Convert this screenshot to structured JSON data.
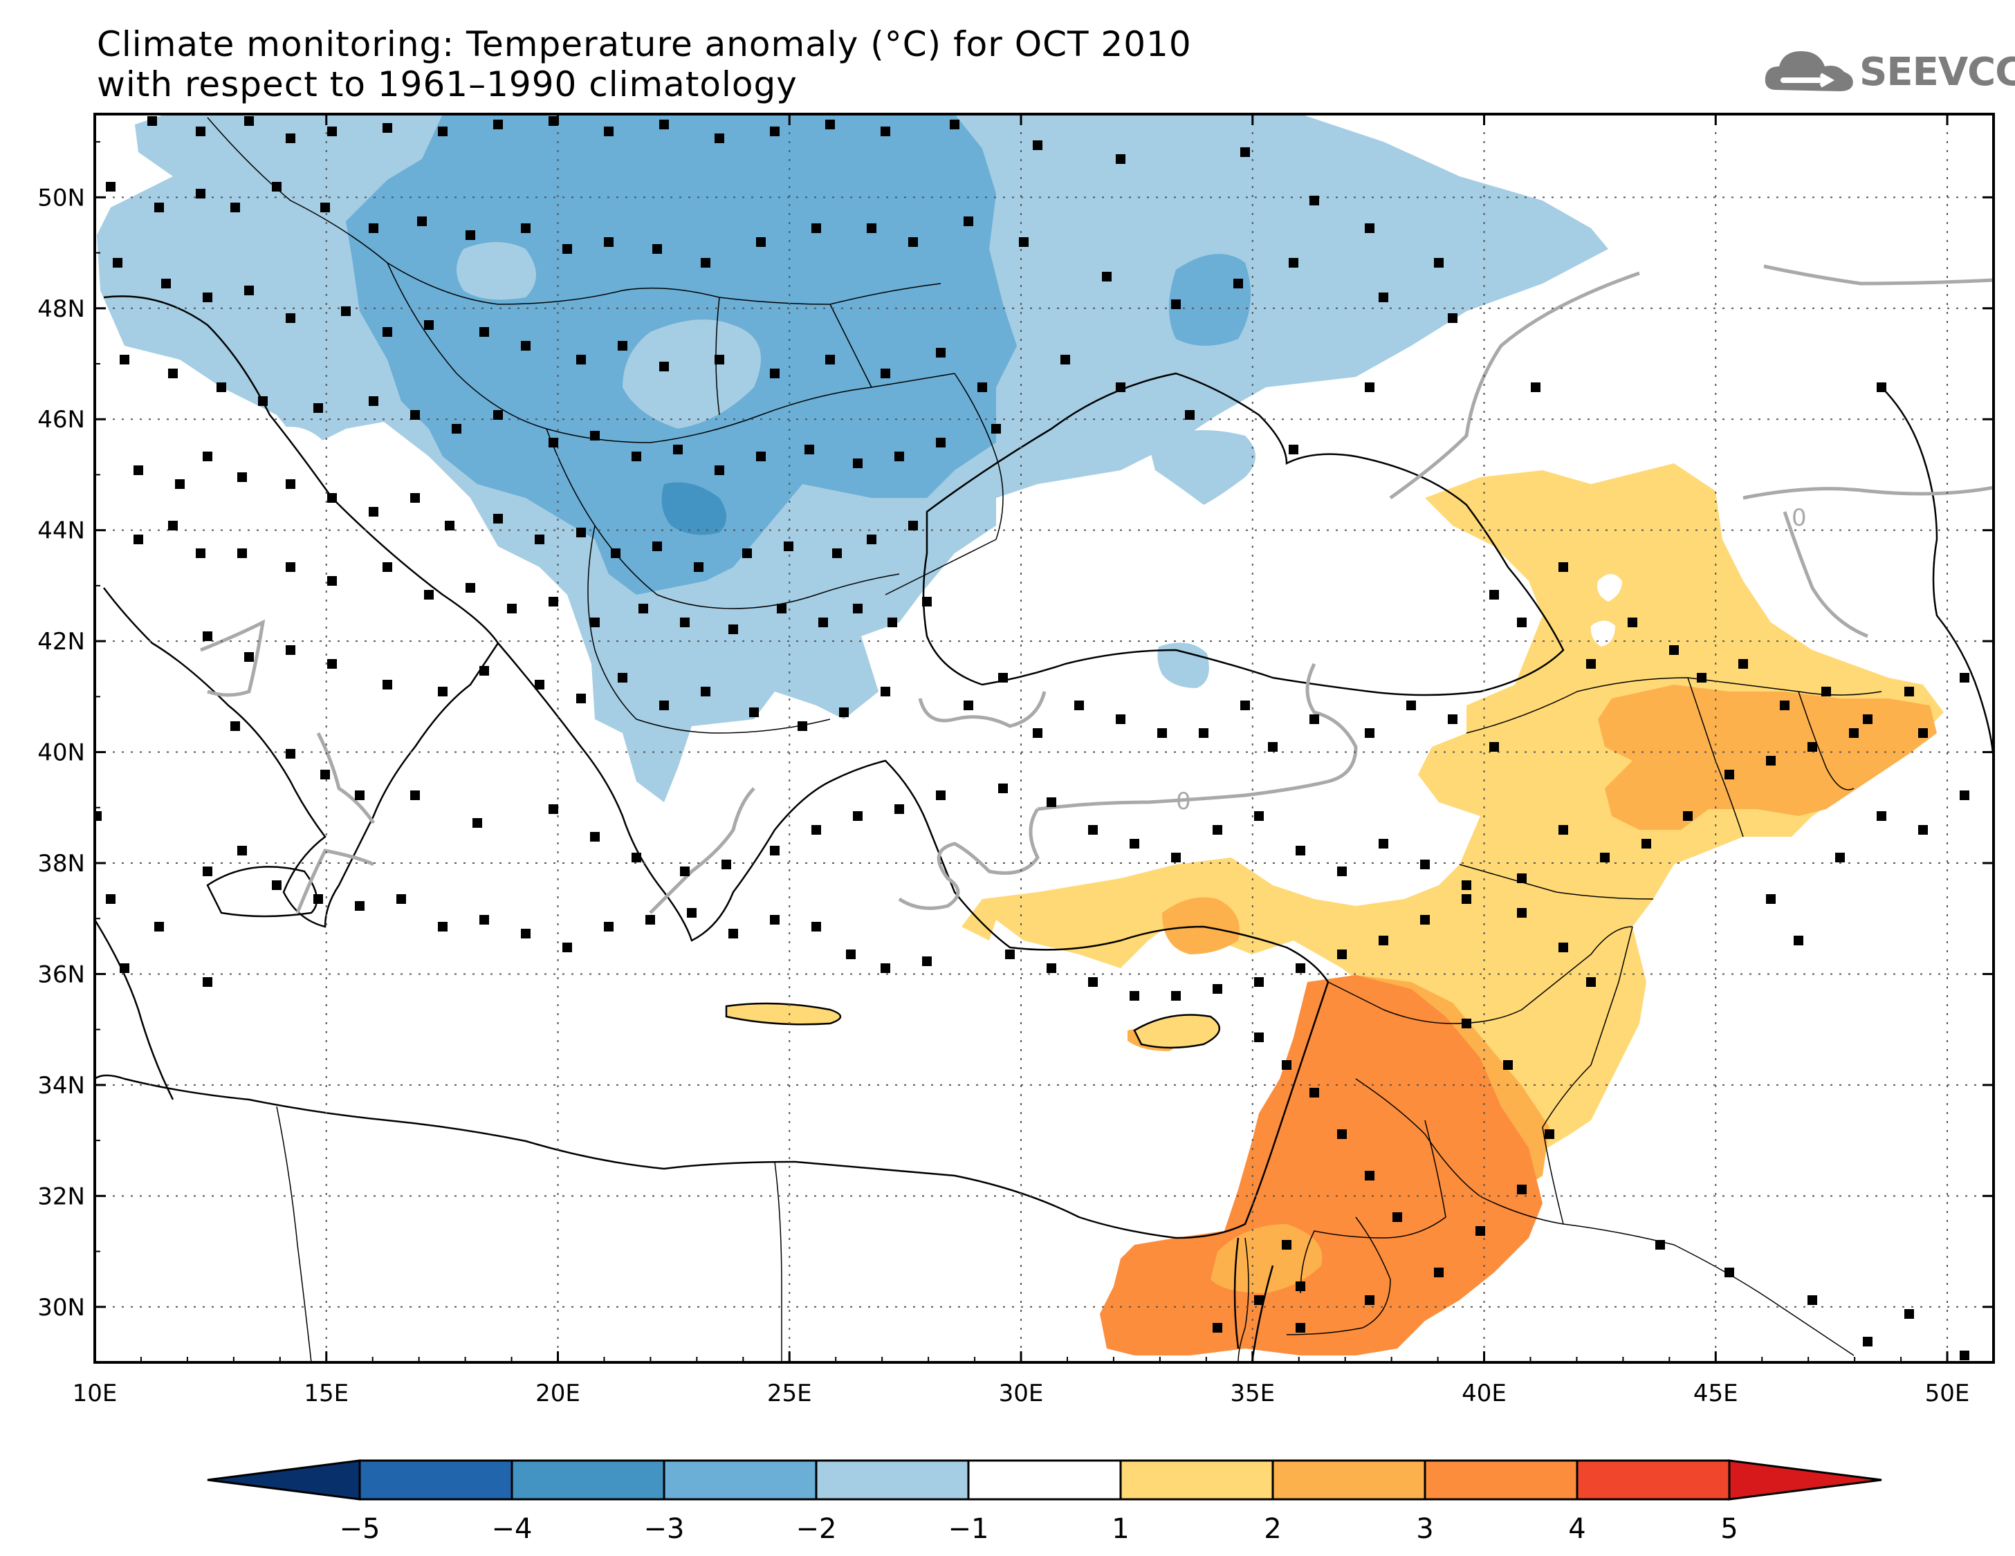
{
  "title": {
    "line1": "Climate monitoring: Temperature anomaly (°C) for OCT 2010",
    "line2": "with respect to 1961–1990 climatology"
  },
  "logo": {
    "text": "SEEVCCC",
    "icon": "cloud-icon",
    "color": "#7d7d7d"
  },
  "axes": {
    "x_ticks": [
      "10E",
      "15E",
      "20E",
      "25E",
      "30E",
      "35E",
      "40E",
      "45E",
      "50E"
    ],
    "y_ticks": [
      "50N",
      "48N",
      "46N",
      "44N",
      "42N",
      "40N",
      "38N",
      "36N",
      "34N",
      "32N",
      "30N"
    ],
    "lon_range": [
      10,
      51
    ],
    "lat_range": [
      29,
      51.5
    ]
  },
  "contour_label": "0",
  "colorbar": {
    "labels": [
      "−5",
      "−4",
      "−3",
      "−2",
      "−1",
      "1",
      "2",
      "3",
      "4",
      "5"
    ],
    "colors": [
      "#08306b",
      "#2166ac",
      "#4393c3",
      "#6baed6",
      "#a5cde3",
      "#ffffff",
      "#fed976",
      "#fdb14d",
      "#fc8d3c",
      "#f0462c",
      "#d7191c"
    ]
  },
  "palette": {
    "anom_m3": "#4393c3",
    "anom_m2": "#6baed6",
    "anom_m1": "#a5cde3",
    "anom_p1": "#fed976",
    "anom_p2": "#fdb14d",
    "anom_p3": "#fc8d3c",
    "zero_contour": "#a9a9a9"
  }
}
